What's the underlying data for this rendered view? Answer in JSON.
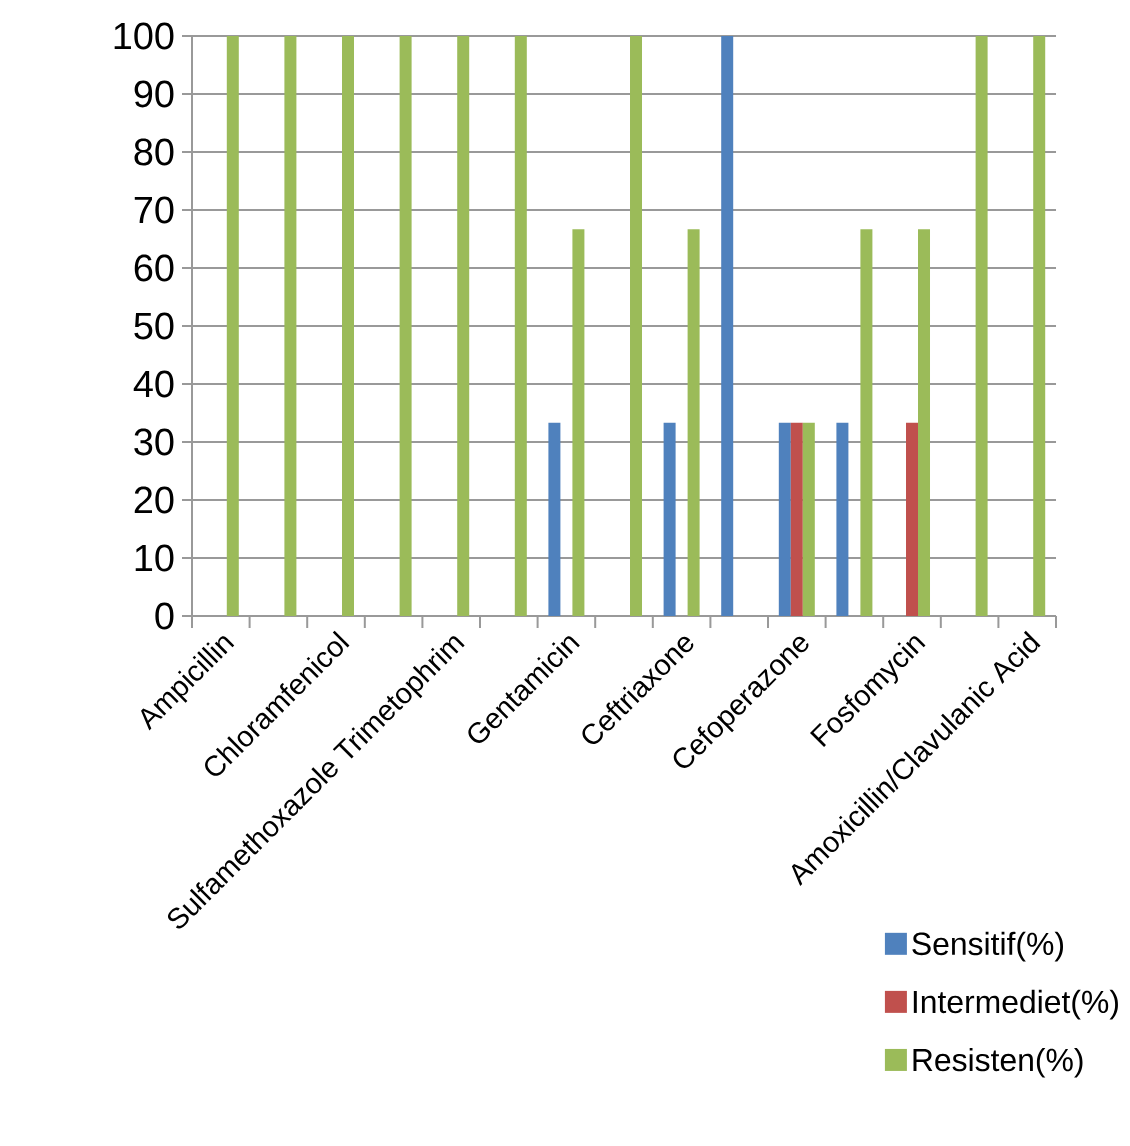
{
  "chart_data": {
    "type": "bar",
    "categories": [
      "Ampicillin",
      null,
      "Chloramfenicol",
      null,
      "Sulfamethoxazole Trimetophrim",
      null,
      "Gentamicin",
      null,
      "Ceftriaxone",
      null,
      "Cefoperazone",
      null,
      "Fosfomycin",
      null,
      "Amoxicillin/Clavulanic Acid"
    ],
    "series": [
      {
        "name": "Sensitif(%)",
        "color": "#4f81bd",
        "values": [
          0,
          0,
          0,
          0,
          0,
          0,
          33.3,
          0,
          33.3,
          100,
          33.3,
          33.3,
          0,
          0,
          0
        ]
      },
      {
        "name": "Intermediet(%)",
        "color": "#c0504d",
        "values": [
          0,
          0,
          0,
          0,
          0,
          0,
          0,
          0,
          0,
          0,
          33.3,
          0,
          33.3,
          0,
          0
        ]
      },
      {
        "name": "Resisten(%)",
        "color": "#9bbb59",
        "values": [
          100,
          100,
          100,
          100,
          100,
          100,
          66.7,
          100,
          66.7,
          0,
          33.3,
          66.7,
          66.7,
          100,
          100
        ]
      }
    ],
    "ylim": [
      0,
      100
    ],
    "yticks": [
      0,
      10,
      20,
      30,
      40,
      50,
      60,
      70,
      80,
      90,
      100
    ],
    "grid": "y",
    "legend": "bottom right"
  }
}
